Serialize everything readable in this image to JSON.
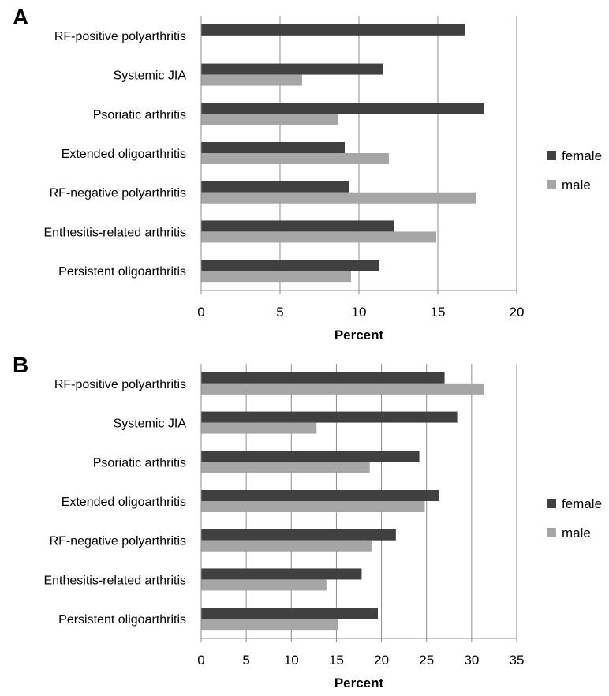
{
  "panels": [
    {
      "letter": "A"
    },
    {
      "letter": "B"
    }
  ],
  "chart_data": [
    {
      "type": "bar",
      "orientation": "horizontal",
      "panel": "A",
      "categories": [
        "RF-positive polyarthritis",
        "Systemic JIA",
        "Psoriatic arthritis",
        "Extended oligoarthritis",
        "RF-negative polyarthritis",
        "Enthesitis-related arthritis",
        "Persistent oligoarthritis"
      ],
      "series": [
        {
          "name": "female",
          "color": "#404040",
          "values": [
            16.7,
            11.5,
            17.9,
            9.1,
            9.4,
            12.2,
            11.3
          ]
        },
        {
          "name": "male",
          "color": "#a6a6a6",
          "values": [
            0,
            6.4,
            8.7,
            11.9,
            17.4,
            14.9,
            9.5
          ]
        }
      ],
      "xlabel": "Percent",
      "ylabel": "",
      "xlim": [
        0,
        20
      ],
      "xticks": [
        0,
        5,
        10,
        15,
        20
      ],
      "grid": "vertical",
      "legend": "right"
    },
    {
      "type": "bar",
      "orientation": "horizontal",
      "panel": "B",
      "categories": [
        "RF-positive polyarthritis",
        "Systemic JIA",
        "Psoriatic arthritis",
        "Extended oligoarthritis",
        "RF-negative polyarthritis",
        "Enthesitis-related arthritis",
        "Persistent oligoarthritis"
      ],
      "series": [
        {
          "name": "female",
          "color": "#404040",
          "values": [
            27.0,
            28.4,
            24.2,
            26.4,
            21.6,
            17.8,
            19.6
          ]
        },
        {
          "name": "male",
          "color": "#a6a6a6",
          "values": [
            31.4,
            12.8,
            18.7,
            24.8,
            18.9,
            13.9,
            15.2
          ]
        }
      ],
      "xlabel": "Percent",
      "ylabel": "",
      "xlim": [
        0,
        35
      ],
      "xticks": [
        0,
        5,
        10,
        15,
        20,
        25,
        30,
        35
      ],
      "grid": "vertical",
      "legend": "right"
    }
  ]
}
